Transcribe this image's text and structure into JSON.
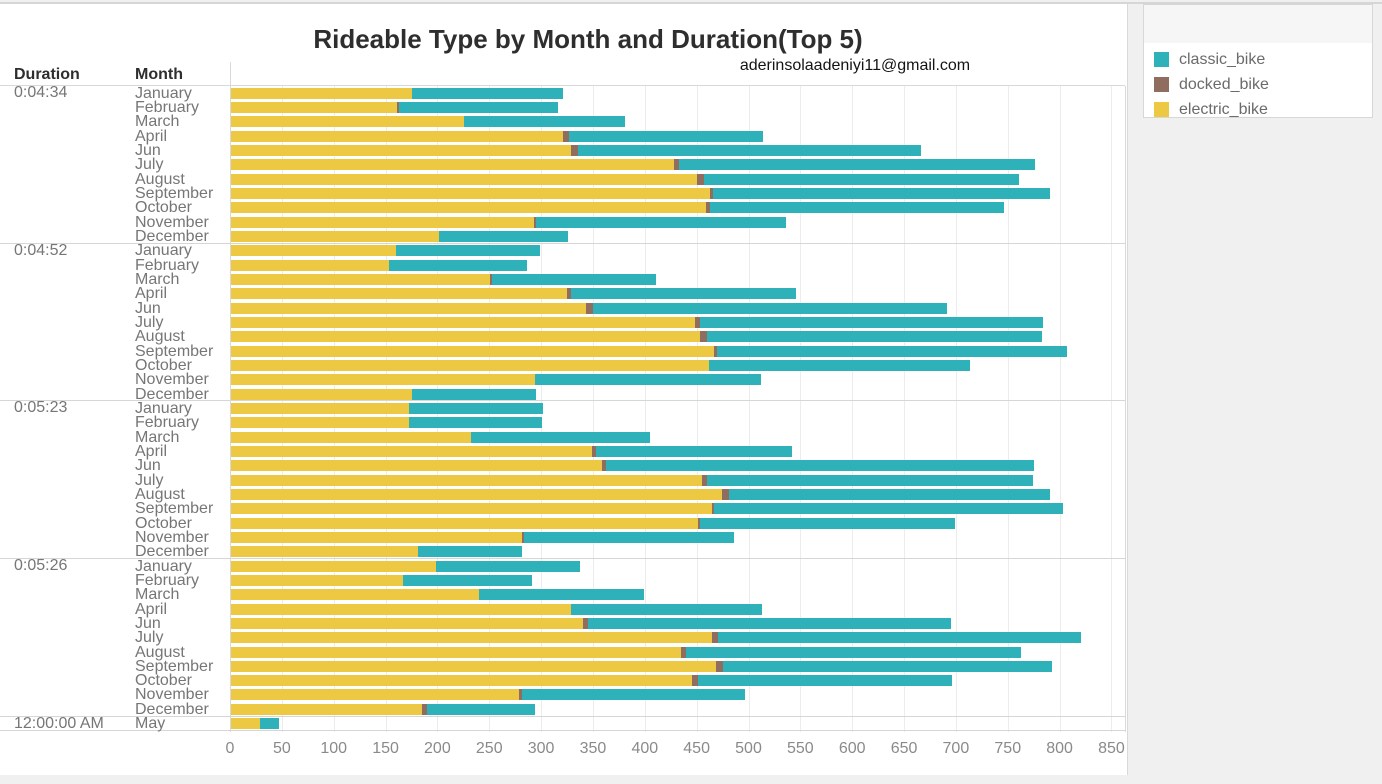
{
  "title": "Rideable Type by Month and Duration(Top 5)",
  "email": "aderinsolaadeniyi11@gmail.com",
  "row_headers": {
    "duration": "Duration",
    "month": "Month"
  },
  "legend": {
    "position": "top-right",
    "items": [
      {
        "label": "classic_bike",
        "color": "#2FB1B9"
      },
      {
        "label": "docked_bike",
        "color": "#8F6E60"
      },
      {
        "label": "electric_bike",
        "color": "#EDC843"
      }
    ]
  },
  "axis": {
    "min": 0,
    "max": 850,
    "step": 50,
    "ticks": [
      0,
      50,
      100,
      150,
      200,
      250,
      300,
      350,
      400,
      450,
      500,
      550,
      600,
      650,
      700,
      750,
      800,
      850
    ]
  },
  "chart_data": {
    "type": "bar",
    "orientation": "horizontal",
    "stacked": true,
    "grid": true,
    "legend_position": "top-right",
    "series_order": [
      "electric_bike",
      "docked_bike",
      "classic_bike"
    ],
    "colors": {
      "electric_bike": "#EDC843",
      "docked_bike": "#8F6E60",
      "classic_bike": "#2FB1B9"
    },
    "xlim": [
      0,
      863
    ],
    "groups": [
      {
        "duration": "0:04:34",
        "rows": [
          {
            "month": "January",
            "electric_bike": 175,
            "docked_bike": 0,
            "classic_bike": 145
          },
          {
            "month": "February",
            "electric_bike": 160,
            "docked_bike": 2,
            "classic_bike": 153
          },
          {
            "month": "March",
            "electric_bike": 225,
            "docked_bike": 0,
            "classic_bike": 155
          },
          {
            "month": "April",
            "electric_bike": 320,
            "docked_bike": 6,
            "classic_bike": 187
          },
          {
            "month": "Jun",
            "electric_bike": 328,
            "docked_bike": 7,
            "classic_bike": 330
          },
          {
            "month": "July",
            "electric_bike": 427,
            "docked_bike": 5,
            "classic_bike": 343
          },
          {
            "month": "August",
            "electric_bike": 449,
            "docked_bike": 7,
            "classic_bike": 304
          },
          {
            "month": "September",
            "electric_bike": 462,
            "docked_bike": 3,
            "classic_bike": 325
          },
          {
            "month": "October",
            "electric_bike": 458,
            "docked_bike": 4,
            "classic_bike": 283
          },
          {
            "month": "November",
            "electric_bike": 292,
            "docked_bike": 2,
            "classic_bike": 241
          },
          {
            "month": "December",
            "electric_bike": 201,
            "docked_bike": 0,
            "classic_bike": 124
          }
        ]
      },
      {
        "duration": "0:04:52",
        "rows": [
          {
            "month": "January",
            "electric_bike": 159,
            "docked_bike": 0,
            "classic_bike": 139
          },
          {
            "month": "February",
            "electric_bike": 152,
            "docked_bike": 0,
            "classic_bike": 133
          },
          {
            "month": "March",
            "electric_bike": 250,
            "docked_bike": 2,
            "classic_bike": 158
          },
          {
            "month": "April",
            "electric_bike": 324,
            "docked_bike": 4,
            "classic_bike": 217
          },
          {
            "month": "Jun",
            "electric_bike": 342,
            "docked_bike": 7,
            "classic_bike": 341
          },
          {
            "month": "July",
            "electric_bike": 447,
            "docked_bike": 5,
            "classic_bike": 331
          },
          {
            "month": "August",
            "electric_bike": 452,
            "docked_bike": 7,
            "classic_bike": 323
          },
          {
            "month": "September",
            "electric_bike": 466,
            "docked_bike": 3,
            "classic_bike": 337
          },
          {
            "month": "October",
            "electric_bike": 461,
            "docked_bike": 0,
            "classic_bike": 252
          },
          {
            "month": "November",
            "electric_bike": 293,
            "docked_bike": 0,
            "classic_bike": 218
          },
          {
            "month": "December",
            "electric_bike": 175,
            "docked_bike": 0,
            "classic_bike": 119
          }
        ]
      },
      {
        "duration": "0:05:23",
        "rows": [
          {
            "month": "January",
            "electric_bike": 172,
            "docked_bike": 0,
            "classic_bike": 129
          },
          {
            "month": "February",
            "electric_bike": 172,
            "docked_bike": 0,
            "classic_bike": 128
          },
          {
            "month": "March",
            "electric_bike": 231,
            "docked_bike": 0,
            "classic_bike": 173
          },
          {
            "month": "April",
            "electric_bike": 348,
            "docked_bike": 4,
            "classic_bike": 189
          },
          {
            "month": "Jun",
            "electric_bike": 358,
            "docked_bike": 4,
            "classic_bike": 412
          },
          {
            "month": "July",
            "electric_bike": 454,
            "docked_bike": 5,
            "classic_bike": 314
          },
          {
            "month": "August",
            "electric_bike": 473,
            "docked_bike": 7,
            "classic_bike": 310
          },
          {
            "month": "September",
            "electric_bike": 464,
            "docked_bike": 2,
            "classic_bike": 336
          },
          {
            "month": "October",
            "electric_bike": 450,
            "docked_bike": 2,
            "classic_bike": 246
          },
          {
            "month": "November",
            "electric_bike": 281,
            "docked_bike": 2,
            "classic_bike": 202
          },
          {
            "month": "December",
            "electric_bike": 180,
            "docked_bike": 0,
            "classic_bike": 101
          }
        ]
      },
      {
        "duration": "0:05:26",
        "rows": [
          {
            "month": "January",
            "electric_bike": 198,
            "docked_bike": 0,
            "classic_bike": 139
          },
          {
            "month": "February",
            "electric_bike": 166,
            "docked_bike": 0,
            "classic_bike": 124
          },
          {
            "month": "March",
            "electric_bike": 239,
            "docked_bike": 0,
            "classic_bike": 159
          },
          {
            "month": "April",
            "electric_bike": 328,
            "docked_bike": 0,
            "classic_bike": 184
          },
          {
            "month": "Jun",
            "electric_bike": 339,
            "docked_bike": 5,
            "classic_bike": 350
          },
          {
            "month": "July",
            "electric_bike": 464,
            "docked_bike": 6,
            "classic_bike": 350
          },
          {
            "month": "August",
            "electric_bike": 434,
            "docked_bike": 5,
            "classic_bike": 323
          },
          {
            "month": "September",
            "electric_bike": 468,
            "docked_bike": 6,
            "classic_bike": 318
          },
          {
            "month": "October",
            "electric_bike": 445,
            "docked_bike": 5,
            "classic_bike": 245
          },
          {
            "month": "November",
            "electric_bike": 278,
            "docked_bike": 3,
            "classic_bike": 215
          },
          {
            "month": "December",
            "electric_bike": 184,
            "docked_bike": 5,
            "classic_bike": 104
          }
        ]
      },
      {
        "duration": "12:00:00 AM",
        "rows": [
          {
            "month": "May",
            "electric_bike": 28,
            "docked_bike": 0,
            "classic_bike": 18
          }
        ]
      }
    ]
  }
}
